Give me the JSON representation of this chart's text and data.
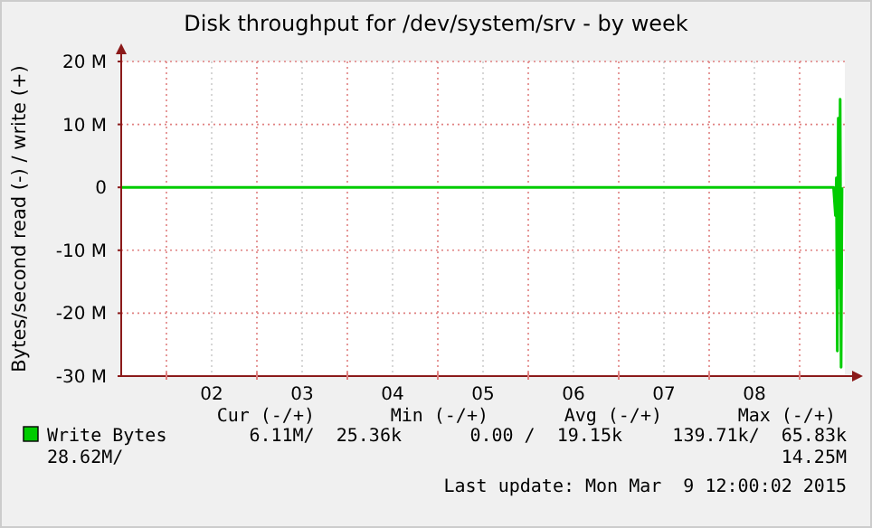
{
  "chart_data": {
    "type": "line",
    "title": "Disk throughput for /dev/system/srv - by week",
    "ylabel": "Bytes/second read (-) / write (+)",
    "x": [
      "2015-03-01T12:00",
      "2015-03-04T00:00",
      "2015-03-07T00:00",
      "2015-03-09T09:00",
      "2015-03-09T09:30",
      "2015-03-09T09:45",
      "2015-03-09T10:00",
      "2015-03-09T10:15",
      "2015-03-09T10:30",
      "2015-03-09T10:45",
      "2015-03-09T11:00",
      "2015-03-09T11:15"
    ],
    "series": [
      {
        "name": "Write Bytes",
        "color": "#00cc00",
        "values": [
          0,
          0,
          0,
          0,
          -4500000,
          1500000,
          -26000000,
          11000000,
          -16000000,
          14000000,
          -28600000,
          0
        ]
      }
    ],
    "xlim": [
      "2015-03-01T12:00",
      "2015-03-09T12:00"
    ],
    "xticks": [
      {
        "value": "2015-03-02T00:00",
        "label": null
      },
      {
        "value": "2015-03-02T12:00",
        "label": "02"
      },
      {
        "value": "2015-03-03T00:00",
        "label": null
      },
      {
        "value": "2015-03-03T12:00",
        "label": "03"
      },
      {
        "value": "2015-03-04T00:00",
        "label": null
      },
      {
        "value": "2015-03-04T12:00",
        "label": "04"
      },
      {
        "value": "2015-03-05T00:00",
        "label": null
      },
      {
        "value": "2015-03-05T12:00",
        "label": "05"
      },
      {
        "value": "2015-03-06T00:00",
        "label": null
      },
      {
        "value": "2015-03-06T12:00",
        "label": "06"
      },
      {
        "value": "2015-03-07T00:00",
        "label": null
      },
      {
        "value": "2015-03-07T12:00",
        "label": "07"
      },
      {
        "value": "2015-03-08T00:00",
        "label": null
      },
      {
        "value": "2015-03-08T12:00",
        "label": "08"
      },
      {
        "value": "2015-03-09T00:00",
        "label": null
      }
    ],
    "ylim": [
      -30000000,
      20000000
    ],
    "yticks": [
      {
        "value": -30000000,
        "label": "-30 M"
      },
      {
        "value": -20000000,
        "label": "-20 M"
      },
      {
        "value": -10000000,
        "label": "-10 M"
      },
      0,
      {
        "value": 10000000,
        "label": "10 M"
      },
      {
        "value": 20000000,
        "label": "20 M"
      }
    ],
    "grid": true,
    "legend": "bottom",
    "marker": "none",
    "line_style": "solid",
    "annotations": [
      "Cur (-/+)",
      "Min (-/+)",
      "Avg (-/+)",
      "Max (-/+)",
      "6.11M/  25.36k",
      "0.00 /  19.15k",
      "139.71k/  65.83k",
      "28.62M/",
      "14.25M",
      "Last update: Mon Mar  9 12:00:02 2015"
    ]
  }
}
